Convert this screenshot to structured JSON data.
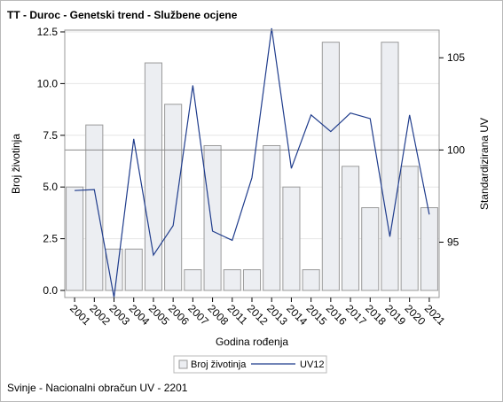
{
  "title": "TT - Duroc - Genetski trend - Službene ocjene",
  "footnote": "Svinje - Nacionalni obračun UV - 2201",
  "colors": {
    "bar_fill": "#eceef2",
    "bar_stroke": "#9a9a9a",
    "line": "#1f3c8c",
    "reference_line": "#8a8a8a",
    "grid": "#e6e6e6"
  },
  "chart_data": {
    "type": "bar-line",
    "categories": [
      "2001",
      "2002",
      "2003",
      "2004",
      "2005",
      "2006",
      "2007",
      "2008",
      "2011",
      "2012",
      "2013",
      "2014",
      "2015",
      "2016",
      "2017",
      "2018",
      "2019",
      "2020",
      "2021"
    ],
    "series": [
      {
        "name": "Broj životinja",
        "type": "bar",
        "axis": "left",
        "values": [
          5,
          8,
          2,
          2,
          11,
          9,
          1,
          7,
          1,
          1,
          7,
          5,
          1,
          12,
          6,
          4,
          12,
          6,
          4
        ]
      },
      {
        "name": "UV12",
        "type": "line",
        "axis": "right",
        "values": [
          97.8,
          97.85,
          92.0,
          100.6,
          94.3,
          95.9,
          103.5,
          95.6,
          95.1,
          98.5,
          106.6,
          99.0,
          101.9,
          101.0,
          102.0,
          101.7,
          95.3,
          101.9,
          96.5
        ]
      }
    ],
    "xlabel": "Godina rođenja",
    "ylabel": "Broj životinja",
    "y2label": "Standardizirana UV",
    "ylim": [
      0,
      12.5
    ],
    "yticks": [
      "0.0",
      "2.5",
      "5.0",
      "7.5",
      "10.0",
      "12.5"
    ],
    "y2lim": [
      92,
      106.5
    ],
    "y2ticks": [
      "95",
      "100",
      "105"
    ],
    "reference_line": 100,
    "grid": true,
    "legend": {
      "position": "bottom",
      "entries": [
        "Broj životinja",
        "UV12"
      ]
    }
  }
}
